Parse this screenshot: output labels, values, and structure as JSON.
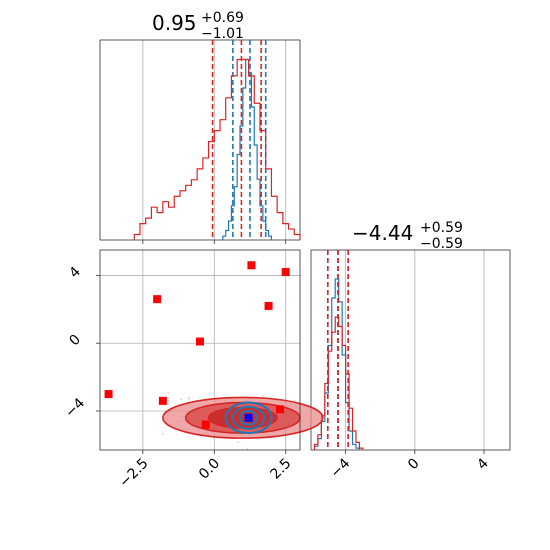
{
  "chart_data": [
    {
      "panel": "param1-marginal",
      "type": "histogram",
      "title": {
        "value": "0.95",
        "upper": "+0.69",
        "lower": "−1.01"
      },
      "xlim": [
        -4.0,
        3.0
      ],
      "grid": true,
      "series": [
        {
          "color": "#1f77b4",
          "bins": [
            0.3,
            0.4,
            0.5,
            0.6,
            0.7,
            0.8,
            0.9,
            1.0,
            1.1,
            1.2,
            1.3,
            1.4,
            1.5,
            1.6,
            1.7,
            1.8,
            1.9,
            2.0
          ],
          "counts": [
            0.02,
            0.05,
            0.1,
            0.18,
            0.28,
            0.45,
            0.6,
            0.8,
            0.95,
            0.88,
            0.7,
            0.5,
            0.32,
            0.18,
            0.1,
            0.05,
            0.02
          ],
          "quantile_lines": [
            0.65,
            1.25,
            1.8
          ]
        },
        {
          "color": "#d62728",
          "bins": [
            -2.8,
            -2.6,
            -2.4,
            -2.2,
            -2.0,
            -1.8,
            -1.6,
            -1.4,
            -1.2,
            -1.0,
            -0.8,
            -0.6,
            -0.4,
            -0.2,
            0.0,
            0.2,
            0.4,
            0.6,
            0.8,
            1.0,
            1.2,
            1.4,
            1.6,
            1.8,
            2.0,
            2.2,
            2.4,
            2.6,
            2.8,
            3.0
          ],
          "counts": [
            0.01,
            0.03,
            0.04,
            0.06,
            0.05,
            0.07,
            0.06,
            0.08,
            0.09,
            0.1,
            0.11,
            0.13,
            0.15,
            0.18,
            0.2,
            0.22,
            0.26,
            0.3,
            0.33,
            0.33,
            0.3,
            0.25,
            0.2,
            0.13,
            0.08,
            0.05,
            0.03,
            0.02,
            0.01
          ],
          "quantile_lines": [
            -0.06,
            0.95,
            1.64
          ]
        }
      ]
    },
    {
      "panel": "param2-marginal",
      "type": "histogram",
      "title": {
        "value": "−4.44",
        "upper": "+0.59",
        "lower": "−0.59"
      },
      "xlim": [
        -6.0,
        5.5
      ],
      "xticks": [
        "−4",
        "0",
        "4"
      ],
      "grid": true,
      "series": [
        {
          "color": "#1f77b4",
          "bins": [
            -5.8,
            -5.6,
            -5.4,
            -5.2,
            -5.0,
            -4.8,
            -4.6,
            -4.4,
            -4.2,
            -4.0,
            -3.8,
            -3.6,
            -3.4,
            -3.2
          ],
          "counts": [
            0.02,
            0.06,
            0.15,
            0.3,
            0.55,
            0.8,
            0.9,
            0.78,
            0.5,
            0.25,
            0.1,
            0.03,
            0.01
          ],
          "quantile_lines": [
            -5.03,
            -4.44,
            -3.85
          ]
        },
        {
          "color": "#d62728",
          "bins": [
            -5.8,
            -5.6,
            -5.4,
            -5.2,
            -5.0,
            -4.8,
            -4.6,
            -4.4,
            -4.2,
            -4.0,
            -3.8,
            -3.6,
            -3.4,
            -3.2,
            -3.0
          ],
          "counts": [
            0.03,
            0.08,
            0.18,
            0.35,
            0.52,
            0.62,
            0.7,
            0.65,
            0.55,
            0.4,
            0.22,
            0.1,
            0.04,
            0.01
          ],
          "quantile_lines": [
            -5.03,
            -4.44,
            -3.85
          ]
        }
      ]
    },
    {
      "panel": "joint",
      "type": "scatter",
      "xlim": [
        -4.0,
        3.0
      ],
      "ylim": [
        -6.3,
        5.5
      ],
      "xticks": [
        "−2.5",
        "0.0",
        "2.5"
      ],
      "yticks": [
        "−4",
        "0",
        "4"
      ],
      "grid": true,
      "red_square_markers": [
        {
          "x": -3.7,
          "y": -3.0
        },
        {
          "x": -2.0,
          "y": 2.6
        },
        {
          "x": -1.8,
          "y": -3.4
        },
        {
          "x": -0.5,
          "y": 0.1
        },
        {
          "x": -0.3,
          "y": -4.8
        },
        {
          "x": 1.3,
          "y": 4.6
        },
        {
          "x": 1.9,
          "y": 2.2
        },
        {
          "x": 2.5,
          "y": 4.2
        },
        {
          "x": 2.3,
          "y": -3.9
        }
      ],
      "blue_square_marker": {
        "x": 1.2,
        "y": -4.4
      },
      "contours": [
        {
          "color": "#d62728",
          "center": [
            1.0,
            -4.4
          ],
          "radii": [
            [
              2.8,
              1.2
            ],
            [
              2.0,
              0.9
            ],
            [
              1.2,
              0.6
            ]
          ]
        },
        {
          "color": "#1f77b4",
          "center": [
            1.2,
            -4.4
          ],
          "radii": [
            [
              0.8,
              0.9
            ],
            [
              0.55,
              0.65
            ],
            [
              0.3,
              0.4
            ]
          ]
        }
      ]
    }
  ],
  "colors": {
    "red": "#d62728",
    "blue": "#1f77b4",
    "marker_red": "#ff0000",
    "marker_blue": "#0000ff"
  }
}
